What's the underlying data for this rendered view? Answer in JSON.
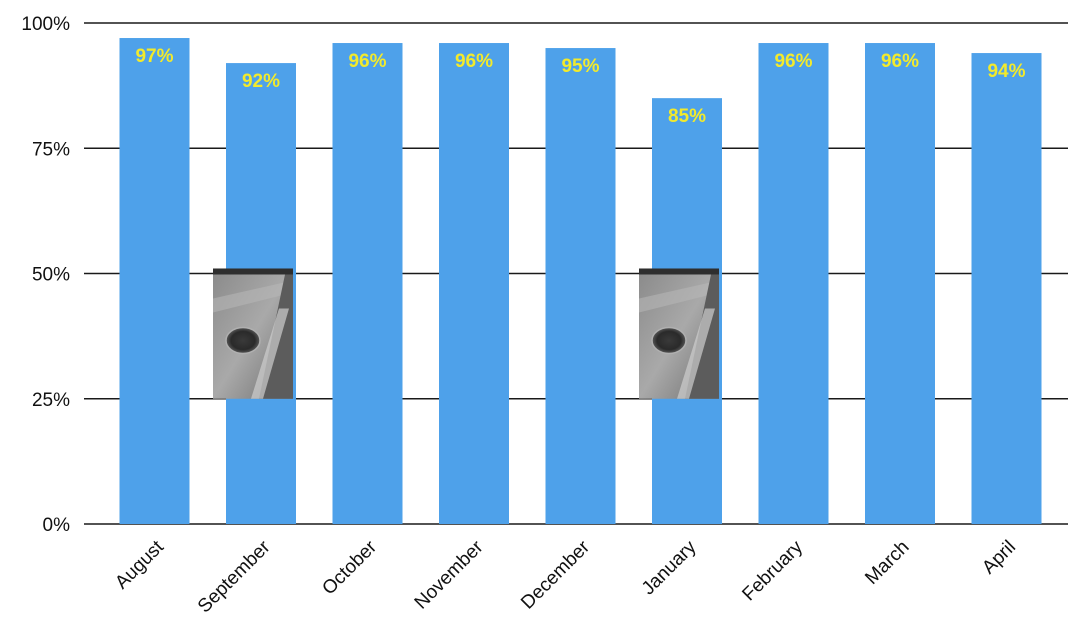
{
  "chart_data": {
    "type": "bar",
    "categories": [
      "August",
      "September",
      "October",
      "November",
      "December",
      "January",
      "February",
      "March",
      "April"
    ],
    "values": [
      97,
      92,
      96,
      96,
      95,
      85,
      96,
      96,
      94
    ],
    "value_labels": [
      "97%",
      "92%",
      "96%",
      "96%",
      "95%",
      "85%",
      "96%",
      "96%",
      "94%"
    ],
    "ylim": [
      0,
      100
    ],
    "yticks": [
      0,
      25,
      50,
      75,
      100
    ],
    "ytick_labels": [
      "0%",
      "25%",
      "50%",
      "75%",
      "100%"
    ],
    "grid": true,
    "legend": "none",
    "colors": {
      "bar": "#4ea1ea",
      "data_label": "#f2ea2c",
      "grid": "#1a1a1a"
    },
    "inset_photos": [
      {
        "category": "September",
        "content": "pothole-photo",
        "y_range": [
          25,
          51
        ]
      },
      {
        "category": "January",
        "content": "pothole-photo",
        "y_range": [
          25,
          51
        ]
      }
    ]
  }
}
